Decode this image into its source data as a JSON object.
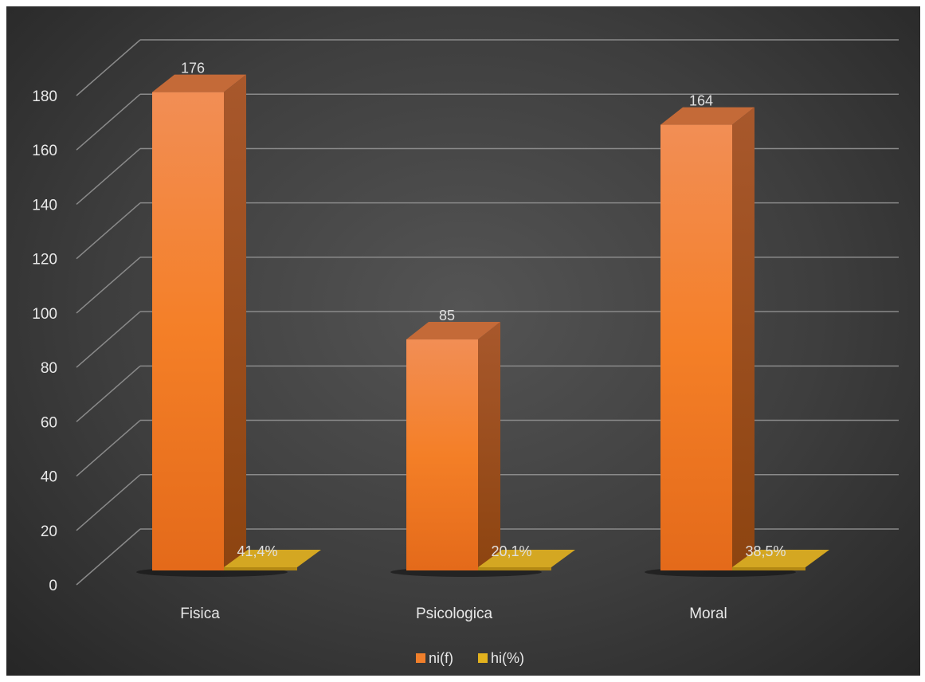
{
  "chart_data": {
    "type": "bar",
    "categories": [
      "Fisica",
      "Psicologica",
      "Moral"
    ],
    "series": [
      {
        "name": "ni(f)",
        "values": [
          176,
          85,
          164
        ],
        "labels": [
          "176",
          "85",
          "164"
        ],
        "color": "#f07f2b"
      },
      {
        "name": "hi(%)",
        "values": [
          0.414,
          0.201,
          0.385
        ],
        "labels": [
          "41,4%",
          "20,1%",
          "38,5%"
        ],
        "color": "#e2b21e"
      }
    ],
    "ylim": [
      0,
      180
    ],
    "yticks": [
      0,
      20,
      40,
      60,
      80,
      100,
      120,
      140,
      160,
      180
    ],
    "ytick_labels": [
      "0",
      "20",
      "40",
      "60",
      "80",
      "100",
      "120",
      "140",
      "160",
      "180"
    ],
    "grid": true,
    "legend": "bottom",
    "background": "#3e3e3e"
  }
}
